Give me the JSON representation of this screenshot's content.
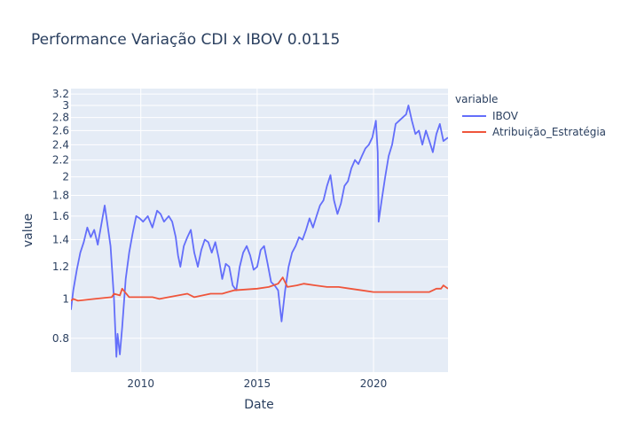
{
  "chart_data": {
    "type": "line",
    "title": "Performance Variação CDI x IBOV 0.0115",
    "xlabel": "Date",
    "ylabel": "value",
    "y_scale": "log",
    "x_range": [
      2007.0,
      2023.2
    ],
    "y_range": [
      0.66,
      3.3
    ],
    "x_ticks": [
      {
        "value": 2010,
        "label": "2010"
      },
      {
        "value": 2015,
        "label": "2015"
      },
      {
        "value": 2020,
        "label": "2020"
      }
    ],
    "y_ticks": [
      {
        "value": 0.8,
        "label": "0.8"
      },
      {
        "value": 1.0,
        "label": "1"
      },
      {
        "value": 1.2,
        "label": "1.2"
      },
      {
        "value": 1.4,
        "label": "1.4"
      },
      {
        "value": 1.6,
        "label": "1.6"
      },
      {
        "value": 1.8,
        "label": "1.8"
      },
      {
        "value": 2.0,
        "label": "2"
      },
      {
        "value": 2.2,
        "label": "2.2"
      },
      {
        "value": 2.4,
        "label": "2.4"
      },
      {
        "value": 2.6,
        "label": "2.6"
      },
      {
        "value": 2.8,
        "label": "2.8"
      },
      {
        "value": 3.0,
        "label": "3"
      },
      {
        "value": 3.2,
        "label": "3.2"
      }
    ],
    "grid": true,
    "legend": {
      "title": "variable",
      "placement": "right"
    },
    "series": [
      {
        "name": "IBOV",
        "color": "#636efa",
        "x": [
          2007.0,
          2007.1,
          2007.25,
          2007.4,
          2007.55,
          2007.7,
          2007.85,
          2008.0,
          2008.15,
          2008.3,
          2008.45,
          2008.55,
          2008.7,
          2008.85,
          2008.95,
          2009.0,
          2009.1,
          2009.2,
          2009.35,
          2009.5,
          2009.65,
          2009.8,
          2009.95,
          2010.1,
          2010.3,
          2010.5,
          2010.7,
          2010.85,
          2011.0,
          2011.2,
          2011.35,
          2011.5,
          2011.6,
          2011.7,
          2011.85,
          2012.0,
          2012.15,
          2012.3,
          2012.45,
          2012.6,
          2012.75,
          2012.9,
          2013.05,
          2013.2,
          2013.35,
          2013.5,
          2013.65,
          2013.8,
          2013.95,
          2014.1,
          2014.25,
          2014.4,
          2014.55,
          2014.7,
          2014.85,
          2015.0,
          2015.15,
          2015.3,
          2015.45,
          2015.6,
          2015.75,
          2015.9,
          2016.05,
          2016.2,
          2016.35,
          2016.5,
          2016.65,
          2016.8,
          2016.95,
          2017.1,
          2017.25,
          2017.4,
          2017.55,
          2017.7,
          2017.85,
          2018.0,
          2018.15,
          2018.3,
          2018.45,
          2018.6,
          2018.75,
          2018.9,
          2019.05,
          2019.2,
          2019.35,
          2019.5,
          2019.65,
          2019.8,
          2019.95,
          2020.1,
          2020.18,
          2020.22,
          2020.35,
          2020.5,
          2020.65,
          2020.8,
          2020.95,
          2021.1,
          2021.25,
          2021.4,
          2021.5,
          2021.65,
          2021.8,
          2021.95,
          2022.1,
          2022.25,
          2022.4,
          2022.55,
          2022.7,
          2022.85,
          2023.0,
          2023.2
        ],
        "values": [
          0.94,
          1.05,
          1.18,
          1.3,
          1.38,
          1.5,
          1.42,
          1.48,
          1.36,
          1.52,
          1.7,
          1.55,
          1.35,
          1.0,
          0.72,
          0.82,
          0.73,
          0.85,
          1.12,
          1.3,
          1.45,
          1.6,
          1.58,
          1.55,
          1.6,
          1.5,
          1.65,
          1.62,
          1.55,
          1.6,
          1.55,
          1.42,
          1.28,
          1.2,
          1.35,
          1.42,
          1.48,
          1.3,
          1.2,
          1.32,
          1.4,
          1.38,
          1.3,
          1.38,
          1.26,
          1.12,
          1.22,
          1.2,
          1.08,
          1.05,
          1.2,
          1.3,
          1.35,
          1.28,
          1.18,
          1.2,
          1.32,
          1.35,
          1.22,
          1.1,
          1.08,
          1.05,
          0.88,
          1.05,
          1.2,
          1.3,
          1.35,
          1.42,
          1.4,
          1.48,
          1.58,
          1.5,
          1.6,
          1.7,
          1.75,
          1.9,
          2.02,
          1.75,
          1.62,
          1.72,
          1.9,
          1.95,
          2.1,
          2.2,
          2.15,
          2.25,
          2.35,
          2.4,
          2.5,
          2.75,
          2.3,
          1.55,
          1.75,
          2.0,
          2.25,
          2.4,
          2.7,
          2.75,
          2.8,
          2.85,
          3.0,
          2.75,
          2.55,
          2.6,
          2.4,
          2.6,
          2.45,
          2.3,
          2.55,
          2.7,
          2.45,
          2.5
        ]
      },
      {
        "name": "Atribuição_Estratégia",
        "color": "#ef553b",
        "x": [
          2007.0,
          2007.1,
          2007.3,
          2008.0,
          2008.75,
          2008.85,
          2009.1,
          2009.2,
          2009.5,
          2010.5,
          2010.8,
          2011.2,
          2012.0,
          2012.3,
          2013.0,
          2013.5,
          2014.0,
          2015.0,
          2015.5,
          2015.9,
          2016.1,
          2016.3,
          2016.7,
          2017.0,
          2017.5,
          2018.0,
          2018.5,
          2019.0,
          2019.5,
          2020.0,
          2020.5,
          2021.0,
          2021.5,
          2022.0,
          2022.4,
          2022.7,
          2022.9,
          2023.0,
          2023.2
        ],
        "values": [
          0.99,
          1.0,
          0.99,
          1.0,
          1.01,
          1.03,
          1.02,
          1.06,
          1.01,
          1.01,
          1.0,
          1.01,
          1.03,
          1.01,
          1.03,
          1.03,
          1.05,
          1.06,
          1.07,
          1.09,
          1.13,
          1.07,
          1.08,
          1.09,
          1.08,
          1.07,
          1.07,
          1.06,
          1.05,
          1.04,
          1.04,
          1.04,
          1.04,
          1.04,
          1.04,
          1.06,
          1.06,
          1.08,
          1.06
        ]
      }
    ]
  }
}
